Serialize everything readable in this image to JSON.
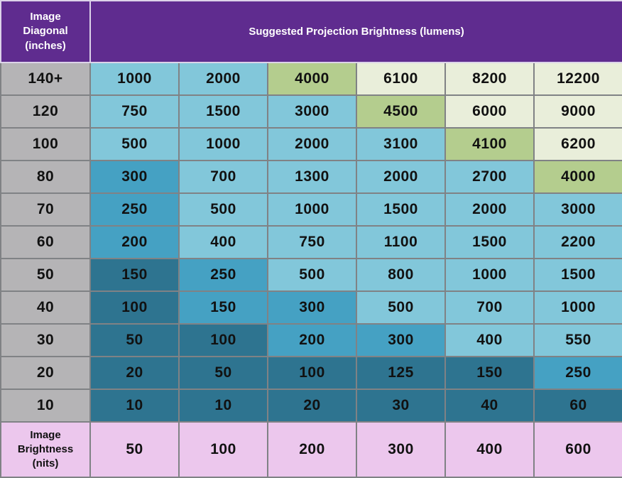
{
  "table": {
    "header": {
      "corner": "Image\nDiagonal\n(inches)",
      "title": "Suggested Projection Brightness (lumens)"
    },
    "rows": [
      {
        "label": "140+",
        "cells": [
          {
            "v": "1000",
            "tier": "light"
          },
          {
            "v": "2000",
            "tier": "light"
          },
          {
            "v": "4000",
            "tier": "green"
          },
          {
            "v": "6100",
            "tier": "cream"
          },
          {
            "v": "8200",
            "tier": "cream"
          },
          {
            "v": "12200",
            "tier": "cream"
          }
        ]
      },
      {
        "label": "120",
        "cells": [
          {
            "v": "750",
            "tier": "light"
          },
          {
            "v": "1500",
            "tier": "light"
          },
          {
            "v": "3000",
            "tier": "light"
          },
          {
            "v": "4500",
            "tier": "green"
          },
          {
            "v": "6000",
            "tier": "cream"
          },
          {
            "v": "9000",
            "tier": "cream"
          }
        ]
      },
      {
        "label": "100",
        "cells": [
          {
            "v": "500",
            "tier": "light"
          },
          {
            "v": "1000",
            "tier": "light"
          },
          {
            "v": "2000",
            "tier": "light"
          },
          {
            "v": "3100",
            "tier": "light"
          },
          {
            "v": "4100",
            "tier": "green"
          },
          {
            "v": "6200",
            "tier": "cream"
          }
        ]
      },
      {
        "label": "80",
        "cells": [
          {
            "v": "300",
            "tier": "med"
          },
          {
            "v": "700",
            "tier": "light"
          },
          {
            "v": "1300",
            "tier": "light"
          },
          {
            "v": "2000",
            "tier": "light"
          },
          {
            "v": "2700",
            "tier": "light"
          },
          {
            "v": "4000",
            "tier": "green"
          }
        ]
      },
      {
        "label": "70",
        "cells": [
          {
            "v": "250",
            "tier": "med"
          },
          {
            "v": "500",
            "tier": "light"
          },
          {
            "v": "1000",
            "tier": "light"
          },
          {
            "v": "1500",
            "tier": "light"
          },
          {
            "v": "2000",
            "tier": "light"
          },
          {
            "v": "3000",
            "tier": "light"
          }
        ]
      },
      {
        "label": "60",
        "cells": [
          {
            "v": "200",
            "tier": "med"
          },
          {
            "v": "400",
            "tier": "light"
          },
          {
            "v": "750",
            "tier": "light"
          },
          {
            "v": "1100",
            "tier": "light"
          },
          {
            "v": "1500",
            "tier": "light"
          },
          {
            "v": "2200",
            "tier": "light"
          }
        ]
      },
      {
        "label": "50",
        "cells": [
          {
            "v": "150",
            "tier": "dark"
          },
          {
            "v": "250",
            "tier": "med"
          },
          {
            "v": "500",
            "tier": "light"
          },
          {
            "v": "800",
            "tier": "light"
          },
          {
            "v": "1000",
            "tier": "light"
          },
          {
            "v": "1500",
            "tier": "light"
          }
        ]
      },
      {
        "label": "40",
        "cells": [
          {
            "v": "100",
            "tier": "dark"
          },
          {
            "v": "150",
            "tier": "med"
          },
          {
            "v": "300",
            "tier": "med"
          },
          {
            "v": "500",
            "tier": "light"
          },
          {
            "v": "700",
            "tier": "light"
          },
          {
            "v": "1000",
            "tier": "light"
          }
        ]
      },
      {
        "label": "30",
        "cells": [
          {
            "v": "50",
            "tier": "dark"
          },
          {
            "v": "100",
            "tier": "dark"
          },
          {
            "v": "200",
            "tier": "med"
          },
          {
            "v": "300",
            "tier": "med"
          },
          {
            "v": "400",
            "tier": "light"
          },
          {
            "v": "550",
            "tier": "light"
          }
        ]
      },
      {
        "label": "20",
        "cells": [
          {
            "v": "20",
            "tier": "dark"
          },
          {
            "v": "50",
            "tier": "dark"
          },
          {
            "v": "100",
            "tier": "dark"
          },
          {
            "v": "125",
            "tier": "dark"
          },
          {
            "v": "150",
            "tier": "dark"
          },
          {
            "v": "250",
            "tier": "med"
          }
        ]
      },
      {
        "label": "10",
        "cells": [
          {
            "v": "10",
            "tier": "dark"
          },
          {
            "v": "10",
            "tier": "dark"
          },
          {
            "v": "20",
            "tier": "dark"
          },
          {
            "v": "30",
            "tier": "dark"
          },
          {
            "v": "40",
            "tier": "dark"
          },
          {
            "v": "60",
            "tier": "dark"
          }
        ]
      }
    ],
    "footer": {
      "corner": "Image\nBrightness\n(nits)",
      "values": [
        "50",
        "100",
        "200",
        "300",
        "400",
        "600"
      ]
    },
    "colors": {
      "purple": "#5f2c8f",
      "gray": "#b5b4b6",
      "light": "#82c7da",
      "med": "#45a1c3",
      "dark": "#2e7490",
      "green": "#b4cd8e",
      "cream": "#e9eeda",
      "pink": "#ecc7ed",
      "gridline": "#808285",
      "headerline": "#dcd3e9"
    }
  },
  "chart_data": {
    "type": "heatmap",
    "title": "Suggested Projection Brightness (lumens)",
    "row_axis_label": "Image Diagonal (inches)",
    "col_axis_label": "Image Brightness (nits)",
    "row_categories": [
      "140+",
      "120",
      "100",
      "80",
      "70",
      "60",
      "50",
      "40",
      "30",
      "20",
      "10"
    ],
    "col_categories": [
      50,
      100,
      200,
      300,
      400,
      600
    ],
    "values": [
      [
        1000,
        2000,
        4000,
        6100,
        8200,
        12200
      ],
      [
        750,
        1500,
        3000,
        4500,
        6000,
        9000
      ],
      [
        500,
        1000,
        2000,
        3100,
        4100,
        6200
      ],
      [
        300,
        700,
        1300,
        2000,
        2700,
        4000
      ],
      [
        250,
        500,
        1000,
        1500,
        2000,
        3000
      ],
      [
        200,
        400,
        750,
        1100,
        1500,
        2200
      ],
      [
        150,
        250,
        500,
        800,
        1000,
        1500
      ],
      [
        100,
        150,
        300,
        500,
        700,
        1000
      ],
      [
        50,
        100,
        200,
        300,
        400,
        550
      ],
      [
        20,
        50,
        100,
        125,
        150,
        250
      ],
      [
        10,
        10,
        20,
        30,
        40,
        60
      ]
    ],
    "color_tiers": {
      "dark": "#2e7490",
      "med": "#45a1c3",
      "light": "#82c7da",
      "green": "#b4cd8e",
      "cream": "#e9eeda"
    },
    "legend_position": "none",
    "grid": true
  }
}
